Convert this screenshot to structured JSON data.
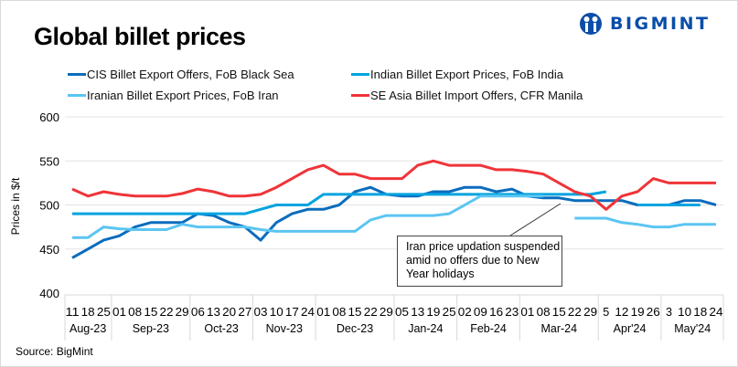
{
  "title": "Global billet prices",
  "logo": {
    "text": "BIGMINT",
    "color": "#0a4ea8"
  },
  "source": "Source:  BigMint",
  "annotation": "Iran price updation suspended  amid no offers due to New Year holidays",
  "chart_data": {
    "type": "line",
    "title": "Global billet prices",
    "ylabel": "Prices in $/t",
    "xlabel": "",
    "ylim": [
      400,
      600
    ],
    "yticks": [
      400,
      450,
      500,
      550,
      600
    ],
    "grid": "horizontal",
    "legend_placement": "top",
    "x": [
      "11",
      "18",
      "25",
      "01",
      "08",
      "15",
      "22",
      "29",
      "06",
      "13",
      "20",
      "27",
      "03",
      "10",
      "17",
      "24",
      "01",
      "08",
      "15",
      "22",
      "29",
      "05",
      "13",
      "19",
      "25",
      "02",
      "09",
      "16",
      "23",
      "01",
      "08",
      "15",
      "22",
      "29",
      "5",
      "12",
      "19",
      "26",
      "3",
      "10",
      "18",
      "24"
    ],
    "months": [
      {
        "label": "Aug-23",
        "count": 3
      },
      {
        "label": "Sep-23",
        "count": 5
      },
      {
        "label": "Oct-23",
        "count": 4
      },
      {
        "label": "Nov-23",
        "count": 4
      },
      {
        "label": "Dec-23",
        "count": 5
      },
      {
        "label": "Jan-24",
        "count": 4
      },
      {
        "label": "Feb-24",
        "count": 4
      },
      {
        "label": "Mar-24",
        "count": 5
      },
      {
        "label": "Apr'24",
        "count": 4
      },
      {
        "label": "May'24",
        "count": 4
      }
    ],
    "series": [
      {
        "name": "CIS Billet Export Offers, FoB Black Sea",
        "color": "#0b6cbd",
        "values": [
          440,
          450,
          460,
          465,
          475,
          480,
          480,
          480,
          490,
          488,
          480,
          475,
          460,
          480,
          490,
          495,
          495,
          500,
          515,
          520,
          512,
          510,
          510,
          515,
          515,
          520,
          520,
          515,
          518,
          510,
          508,
          508,
          505,
          505,
          505,
          505,
          500,
          500,
          500,
          505,
          505,
          500
        ]
      },
      {
        "name": "Indian Billet Export Prices, FoB India",
        "color": "#00a3e0",
        "values": [
          490,
          490,
          490,
          490,
          490,
          490,
          490,
          490,
          490,
          490,
          490,
          490,
          495,
          500,
          500,
          500,
          512,
          512,
          512,
          512,
          512,
          512,
          512,
          512,
          512,
          512,
          512,
          512,
          512,
          512,
          512,
          512,
          512,
          512,
          515,
          null,
          500,
          500,
          500,
          500,
          500,
          null
        ]
      },
      {
        "name": "Iranian Billet Export Prices, FoB Iran",
        "color": "#5bc5f2",
        "values": [
          463,
          463,
          475,
          473,
          472,
          472,
          472,
          478,
          475,
          475,
          475,
          475,
          472,
          470,
          470,
          470,
          470,
          470,
          470,
          483,
          488,
          488,
          488,
          488,
          490,
          500,
          510,
          510,
          510,
          510,
          510,
          null,
          485,
          485,
          485,
          480,
          478,
          475,
          475,
          478,
          478,
          478
        ]
      },
      {
        "name": "SE Asia Billet Import Offers, CFR Manila",
        "color": "#ef3438",
        "values": [
          518,
          510,
          515,
          512,
          510,
          510,
          510,
          513,
          518,
          515,
          510,
          510,
          512,
          520,
          530,
          540,
          545,
          535,
          535,
          530,
          530,
          530,
          545,
          550,
          545,
          545,
          545,
          540,
          540,
          538,
          535,
          525,
          515,
          510,
          495,
          510,
          515,
          530,
          525,
          525,
          525,
          525
        ]
      }
    ]
  }
}
